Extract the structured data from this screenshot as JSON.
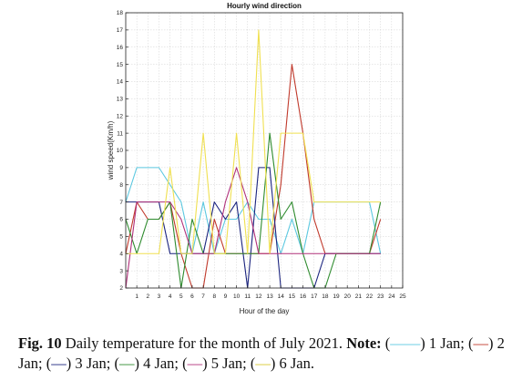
{
  "chart_data": {
    "type": "line",
    "title": "Hourly wind direction",
    "xlabel": "Hour of the day",
    "ylabel": "wind speed(Km/h)",
    "xlim": [
      0,
      25
    ],
    "ylim": [
      2,
      18
    ],
    "xticks": [
      1,
      2,
      3,
      4,
      5,
      6,
      7,
      8,
      9,
      10,
      11,
      12,
      13,
      14,
      15,
      16,
      17,
      18,
      19,
      20,
      21,
      22,
      23,
      24,
      25
    ],
    "yticks": [
      2,
      3,
      4,
      5,
      6,
      7,
      8,
      9,
      10,
      11,
      12,
      13,
      14,
      15,
      16,
      17,
      18
    ],
    "grid": true,
    "colors": {
      "1 Jan": "#5bc8e0",
      "2 Jan": "#c0392b",
      "3 Jan": "#1a237e",
      "4 Jan": "#2e8b2e",
      "5 Jan": "#b0307a",
      "6 Jan": "#f0e050"
    },
    "series": [
      {
        "name": "1 Jan",
        "x": [
          0,
          1,
          2,
          3,
          4,
          5,
          6,
          7,
          8,
          9,
          10,
          11,
          12,
          13,
          14,
          15,
          16,
          17,
          18,
          19,
          20,
          21,
          22,
          23
        ],
        "values": [
          7,
          9,
          9,
          9,
          8,
          7,
          4,
          7,
          4,
          6,
          6,
          7,
          6,
          6,
          4,
          6,
          4,
          7,
          7,
          7,
          7,
          7,
          7,
          4
        ]
      },
      {
        "name": "2 Jan",
        "x": [
          0,
          1,
          2,
          3,
          4,
          5,
          6,
          7,
          8,
          9,
          10,
          11,
          12,
          13,
          14,
          15,
          16,
          17,
          18,
          19,
          20,
          21,
          22,
          23
        ],
        "values": [
          4,
          7,
          6,
          6,
          7,
          4,
          2,
          2,
          6,
          4,
          4,
          4,
          4,
          4,
          8,
          15,
          11,
          6,
          4,
          4,
          4,
          4,
          4,
          6
        ]
      },
      {
        "name": "3 Jan",
        "x": [
          0,
          1,
          2,
          3,
          4,
          5,
          6,
          7,
          8,
          9,
          10,
          11,
          12,
          13,
          14,
          15,
          16,
          17,
          18,
          19,
          20,
          21,
          22,
          23
        ],
        "values": [
          7,
          7,
          7,
          7,
          4,
          4,
          4,
          4,
          7,
          6,
          7,
          2,
          9,
          9,
          2,
          2,
          2,
          2,
          4,
          4,
          4,
          4,
          4,
          4
        ]
      },
      {
        "name": "4 Jan",
        "x": [
          0,
          1,
          2,
          3,
          4,
          5,
          6,
          7,
          8,
          9,
          10,
          11,
          12,
          13,
          14,
          15,
          16,
          17,
          18,
          19,
          20,
          21,
          22,
          23
        ],
        "values": [
          6,
          4,
          6,
          6,
          7,
          2,
          6,
          4,
          4,
          4,
          4,
          4,
          4,
          11,
          6,
          7,
          4,
          2,
          2,
          4,
          4,
          4,
          4,
          7
        ]
      },
      {
        "name": "5 Jan",
        "x": [
          0,
          1,
          2,
          3,
          4,
          5,
          6,
          7,
          8,
          9,
          10,
          11,
          12,
          13,
          14,
          15,
          16,
          17,
          18,
          19,
          20,
          21,
          22,
          23
        ],
        "values": [
          2,
          7,
          7,
          7,
          7,
          6,
          4,
          4,
          4,
          7,
          9,
          7,
          4,
          4,
          4,
          4,
          4,
          4,
          4,
          4,
          4,
          4,
          4,
          4
        ]
      },
      {
        "name": "6 Jan",
        "x": [
          0,
          1,
          2,
          3,
          4,
          5,
          6,
          7,
          8,
          9,
          10,
          11,
          12,
          13,
          14,
          15,
          16,
          17,
          18,
          19,
          20,
          21,
          22,
          23
        ],
        "values": [
          4,
          4,
          4,
          4,
          9,
          4,
          4,
          11,
          4,
          4,
          11,
          4,
          17,
          4,
          11,
          11,
          11,
          7,
          7,
          7,
          7,
          7,
          7,
          7
        ]
      }
    ]
  },
  "caption": {
    "label": "Fig. 10",
    "text": " Daily temperature for the month of July 2021. ",
    "note_label": "Note:",
    "legend": [
      {
        "open": " (",
        "swatch": "——",
        "close": ")",
        "name": " 1 Jan;",
        "color": "#5bc8e0"
      },
      {
        "open": " (",
        "swatch": "—",
        "close": ")",
        "name": " 2 Jan;",
        "color": "#c0392b"
      },
      {
        "open": " (",
        "swatch": "—",
        "close": ")",
        "name": " 3 Jan;",
        "color": "#1a237e"
      },
      {
        "open": " (",
        "swatch": "—",
        "close": ")",
        "name": " 4 Jan;",
        "color": "#2e8b2e"
      },
      {
        "open": " (",
        "swatch": "—",
        "close": ")",
        "name": " 5 Jan;",
        "color": "#b0307a"
      },
      {
        "open": " (",
        "swatch": "—",
        "close": ")",
        "name": " 6 Jan.",
        "color": "#d8c830"
      }
    ]
  }
}
